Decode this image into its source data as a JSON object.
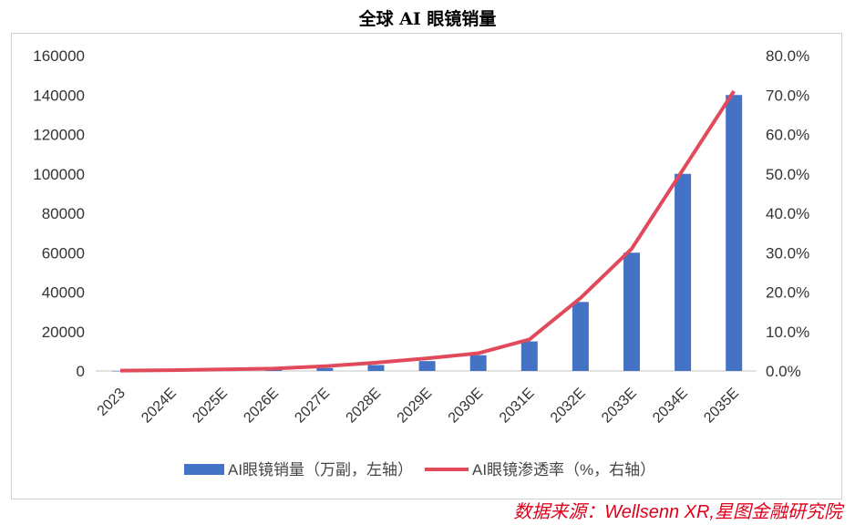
{
  "chart_data": {
    "type": "bar+line",
    "title": "全球 AI 眼镜销量",
    "categories": [
      "2023",
      "2024E",
      "2025E",
      "2026E",
      "2027E",
      "2028E",
      "2029E",
      "2030E",
      "2031E",
      "2032E",
      "2033E",
      "2034E",
      "2035E"
    ],
    "series": [
      {
        "name": "AI眼镜销量（万副，左轴）",
        "type": "bar",
        "axis": "left",
        "color": "#4472c4",
        "values": [
          50,
          150,
          300,
          500,
          1500,
          3000,
          5000,
          8000,
          15000,
          35000,
          60000,
          100000,
          140000
        ]
      },
      {
        "name": "AI眼镜渗透率（%，右轴）",
        "type": "line",
        "axis": "right",
        "color": "#e04a5a",
        "values": [
          0.1,
          0.2,
          0.4,
          0.6,
          1.2,
          2.1,
          3.2,
          4.5,
          8,
          18.5,
          31,
          51,
          71
        ]
      }
    ],
    "y_left": {
      "range": [
        0,
        160000
      ],
      "ticks": [
        "0",
        "20000",
        "40000",
        "60000",
        "80000",
        "100000",
        "120000",
        "140000",
        "160000"
      ]
    },
    "y_right": {
      "range": [
        0,
        80
      ],
      "ticks": [
        "0.0%",
        "10.0%",
        "20.0%",
        "30.0%",
        "40.0%",
        "50.0%",
        "60.0%",
        "70.0%",
        "80.0%"
      ]
    },
    "legend": "bottom",
    "grid": false
  },
  "source": "数据来源：Wellsenn XR,星图金融研究院"
}
